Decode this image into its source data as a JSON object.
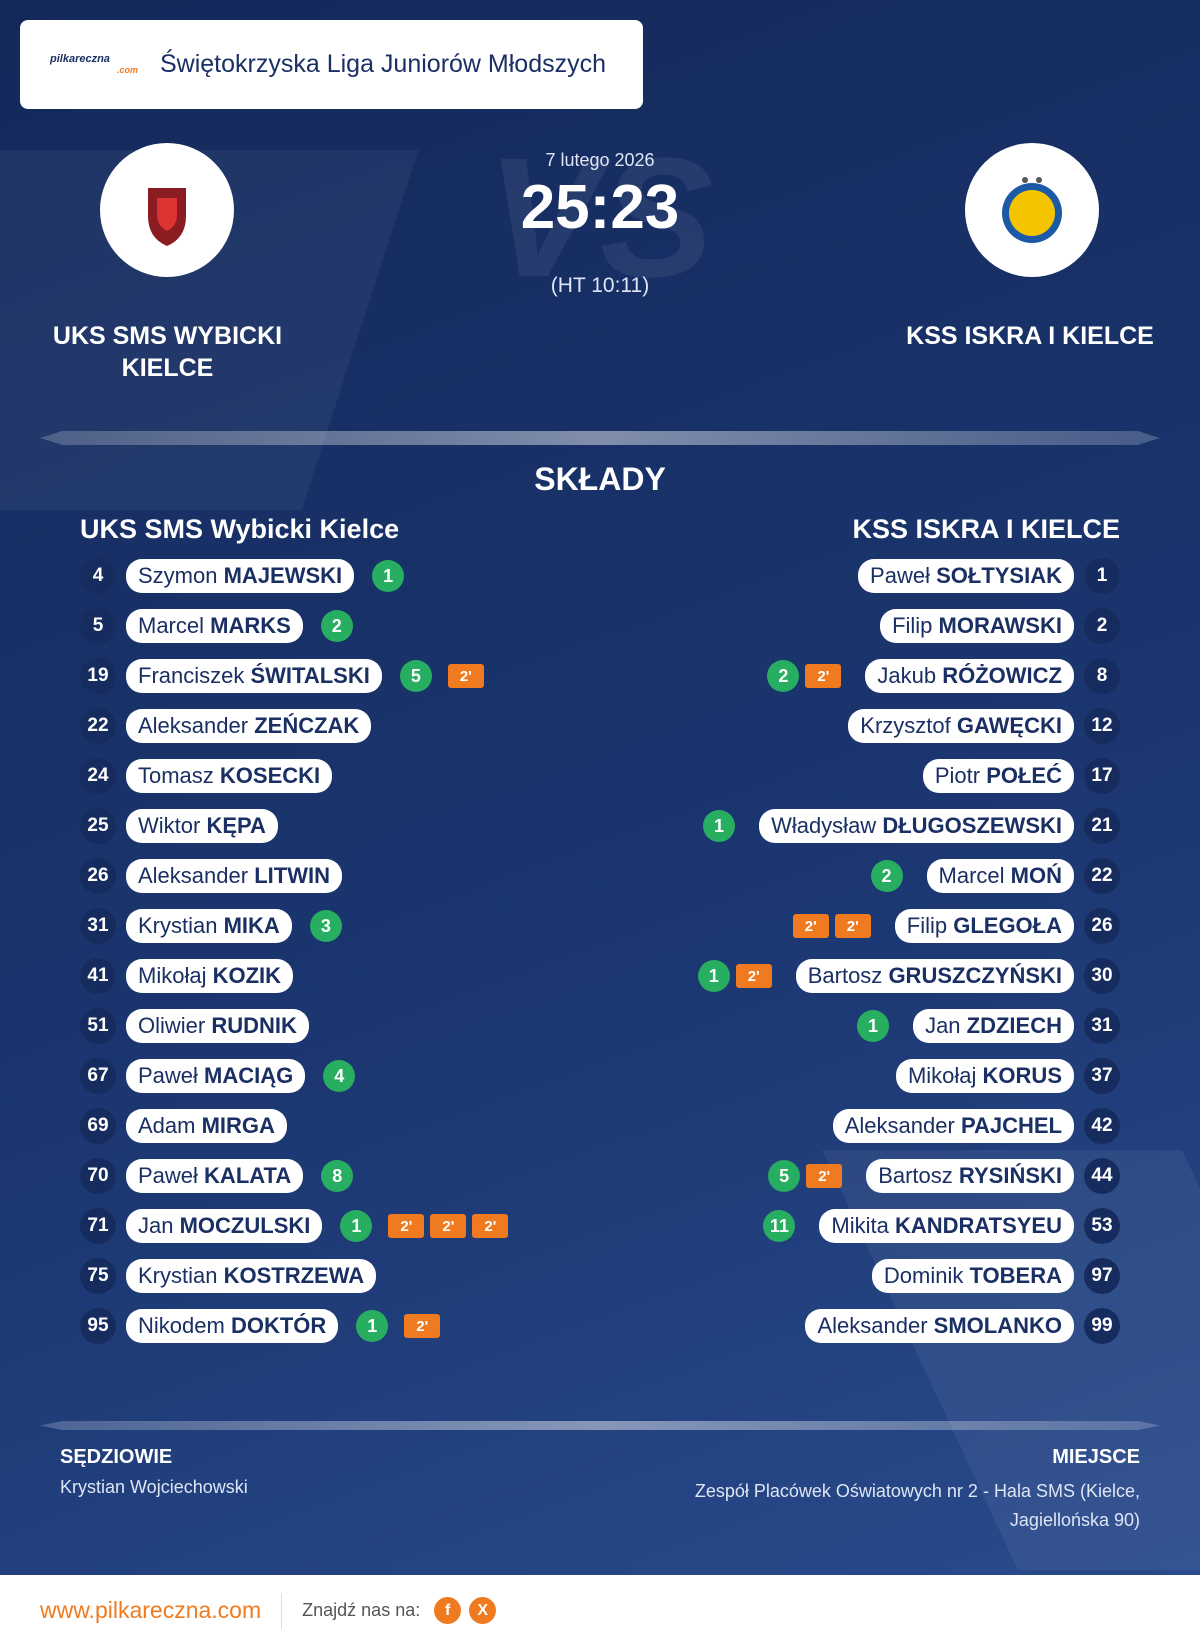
{
  "header": {
    "logo_text": "pilkareczna",
    "logo_sub": ".com",
    "title": "Świętokrzyska Liga Juniorów Młodszych"
  },
  "match": {
    "date": "7 lutego 2026",
    "score": "25:23",
    "halftime": "(HT 10:11)",
    "watermark": "VS",
    "home_team": "UKS SMS WYBICKI KIELCE",
    "away_team": "KSS ISKRA I KIELCE"
  },
  "lineups": {
    "title": "SKŁADY",
    "home": {
      "name": "UKS SMS Wybicki Kielce",
      "players": [
        {
          "number": "4",
          "first": "Szymon",
          "last": "MAJEWSKI",
          "goals": "1",
          "penalties": []
        },
        {
          "number": "5",
          "first": "Marcel",
          "last": "MARKS",
          "goals": "2",
          "penalties": []
        },
        {
          "number": "19",
          "first": "Franciszek",
          "last": "ŚWITALSKI",
          "goals": "5",
          "penalties": [
            "2'"
          ]
        },
        {
          "number": "22",
          "first": "Aleksander",
          "last": "ZEŃCZAK",
          "goals": null,
          "penalties": []
        },
        {
          "number": "24",
          "first": "Tomasz",
          "last": "KOSECKI",
          "goals": null,
          "penalties": []
        },
        {
          "number": "25",
          "first": "Wiktor",
          "last": "KĘPA",
          "goals": null,
          "penalties": []
        },
        {
          "number": "26",
          "first": "Aleksander",
          "last": "LITWIN",
          "goals": null,
          "penalties": []
        },
        {
          "number": "31",
          "first": "Krystian",
          "last": "MIKA",
          "goals": "3",
          "penalties": []
        },
        {
          "number": "41",
          "first": "Mikołaj",
          "last": "KOZIK",
          "goals": null,
          "penalties": []
        },
        {
          "number": "51",
          "first": "Oliwier",
          "last": "RUDNIK",
          "goals": null,
          "penalties": []
        },
        {
          "number": "67",
          "first": "Paweł",
          "last": "MACIĄG",
          "goals": "4",
          "penalties": []
        },
        {
          "number": "69",
          "first": "Adam",
          "last": "MIRGA",
          "goals": null,
          "penalties": []
        },
        {
          "number": "70",
          "first": "Paweł",
          "last": "KALATA",
          "goals": "8",
          "penalties": []
        },
        {
          "number": "71",
          "first": "Jan",
          "last": "MOCZULSKI",
          "goals": "1",
          "penalties": [
            "2'",
            "2'",
            "2'"
          ]
        },
        {
          "number": "75",
          "first": "Krystian",
          "last": "KOSTRZEWA",
          "goals": null,
          "penalties": []
        },
        {
          "number": "95",
          "first": "Nikodem",
          "last": "DOKTÓR",
          "goals": "1",
          "penalties": [
            "2'"
          ]
        }
      ]
    },
    "away": {
      "name": "KSS ISKRA I KIELCE",
      "players": [
        {
          "number": "1",
          "first": "Paweł",
          "last": "SOŁTYSIAK",
          "goals": null,
          "penalties": []
        },
        {
          "number": "2",
          "first": "Filip",
          "last": "MORAWSKI",
          "goals": null,
          "penalties": []
        },
        {
          "number": "8",
          "first": "Jakub",
          "last": "RÓŻOWICZ",
          "goals": "2",
          "penalties": [
            "2'"
          ]
        },
        {
          "number": "12",
          "first": "Krzysztof",
          "last": "GAWĘCKI",
          "goals": null,
          "penalties": []
        },
        {
          "number": "17",
          "first": "Piotr",
          "last": "POŁEĆ",
          "goals": null,
          "penalties": []
        },
        {
          "number": "21",
          "first": "Władysław",
          "last": "DŁUGOSZEWSKI",
          "goals": "1",
          "penalties": []
        },
        {
          "number": "22",
          "first": "Marcel",
          "last": "MOŃ",
          "goals": "2",
          "penalties": []
        },
        {
          "number": "26",
          "first": "Filip",
          "last": "GLEGOŁA",
          "goals": null,
          "penalties": [
            "2'",
            "2'"
          ]
        },
        {
          "number": "30",
          "first": "Bartosz",
          "last": "GRUSZCZYŃSKI",
          "goals": "1",
          "penalties": [
            "2'"
          ]
        },
        {
          "number": "31",
          "first": "Jan",
          "last": "ZDZIECH",
          "goals": "1",
          "penalties": []
        },
        {
          "number": "37",
          "first": "Mikołaj",
          "last": "KORUS",
          "goals": null,
          "penalties": []
        },
        {
          "number": "42",
          "first": "Aleksander",
          "last": "PAJCHEL",
          "goals": null,
          "penalties": []
        },
        {
          "number": "44",
          "first": "Bartosz",
          "last": "RYSIŃSKI",
          "goals": "5",
          "penalties": [
            "2'"
          ]
        },
        {
          "number": "53",
          "first": "Mikita",
          "last": "KANDRATSYEU",
          "goals": "11",
          "penalties": []
        },
        {
          "number": "97",
          "first": "Dominik",
          "last": "TOBERA",
          "goals": null,
          "penalties": []
        },
        {
          "number": "99",
          "first": "Aleksander",
          "last": "SMOLANKO",
          "goals": null,
          "penalties": []
        }
      ]
    }
  },
  "officials": {
    "label": "SĘDZIOWIE",
    "name": "Krystian Wojciechowski"
  },
  "venue": {
    "label": "MIEJSCE",
    "address": "Zespół Placówek Oświatowych nr 2 - Hala SMS (Kielce, Jagiellońska 90)"
  },
  "footer": {
    "url": "www.pilkareczna.com",
    "find_us": "Znajdź nas na:",
    "social": [
      "f",
      "X"
    ]
  }
}
